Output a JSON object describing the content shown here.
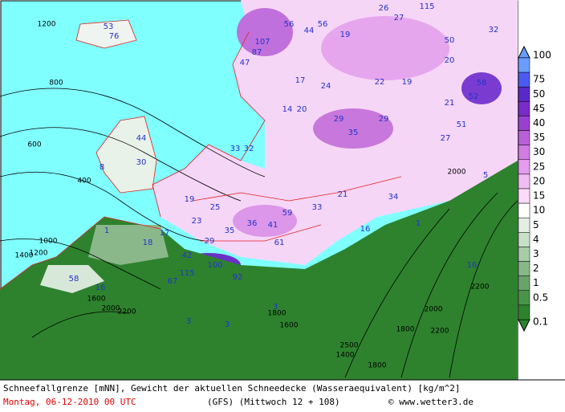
{
  "map": {
    "labels": [
      "53",
      "76",
      "1200",
      "800",
      "600",
      "400",
      "44",
      "30",
      "8",
      "107",
      "87",
      "47",
      "56",
      "44",
      "56",
      "26",
      "27",
      "115",
      "32",
      "19",
      "17",
      "24",
      "14",
      "20",
      "29",
      "35",
      "29",
      "22",
      "19",
      "58",
      "52",
      "51",
      "27",
      "21",
      "50",
      "20",
      "33",
      "32",
      "19",
      "23",
      "25",
      "59",
      "36",
      "41",
      "61",
      "33",
      "21",
      "34",
      "16",
      "29",
      "35",
      "42",
      "100",
      "115",
      "67",
      "92",
      "18",
      "17",
      "58",
      "16",
      "1",
      "1",
      "16",
      "5",
      "3",
      "3",
      "3",
      "1400",
      "1200",
      "1000",
      "1600",
      "2000",
      "2200",
      "1800",
      "1600",
      "2000",
      "2200",
      "2000",
      "1800",
      "2200",
      "2500",
      "1400",
      "1800"
    ]
  },
  "legend": {
    "levels": [
      {
        "value": 100,
        "color": "#6a9cff"
      },
      {
        "value": 75,
        "color": "#4a5cf0"
      },
      {
        "value": 50,
        "color": "#5a28c8"
      },
      {
        "value": 45,
        "color": "#7a2cc8"
      },
      {
        "value": 40,
        "color": "#9a40d0"
      },
      {
        "value": 35,
        "color": "#b860d8"
      },
      {
        "value": 30,
        "color": "#d07ce4"
      },
      {
        "value": 25,
        "color": "#e49cec"
      },
      {
        "value": 20,
        "color": "#f2bcf4"
      },
      {
        "value": 15,
        "color": "#fadcfa"
      },
      {
        "value": 10,
        "color": "#ffffff"
      },
      {
        "value": 5,
        "color": "#e4efe4"
      },
      {
        "value": 4,
        "color": "#c8e0c8"
      },
      {
        "value": 3,
        "color": "#a8cca8"
      },
      {
        "value": 2,
        "color": "#88b888"
      },
      {
        "value": 1,
        "color": "#68a468"
      },
      {
        "value": 0.5,
        "color": "#4a944a"
      },
      {
        "value": 0.1,
        "color": "#2e822e"
      }
    ]
  },
  "footer": {
    "line1": "Schneefallgrenze [mNN], Gewicht der aktuellen Schneedecke (Wasseraequivalent) [kg/m^2]",
    "date": "Montag, 06-12-2010  00 UTC",
    "model": "(GFS)  (Mittwoch 12 + 108)",
    "credit": "© www.wetter3.de"
  }
}
